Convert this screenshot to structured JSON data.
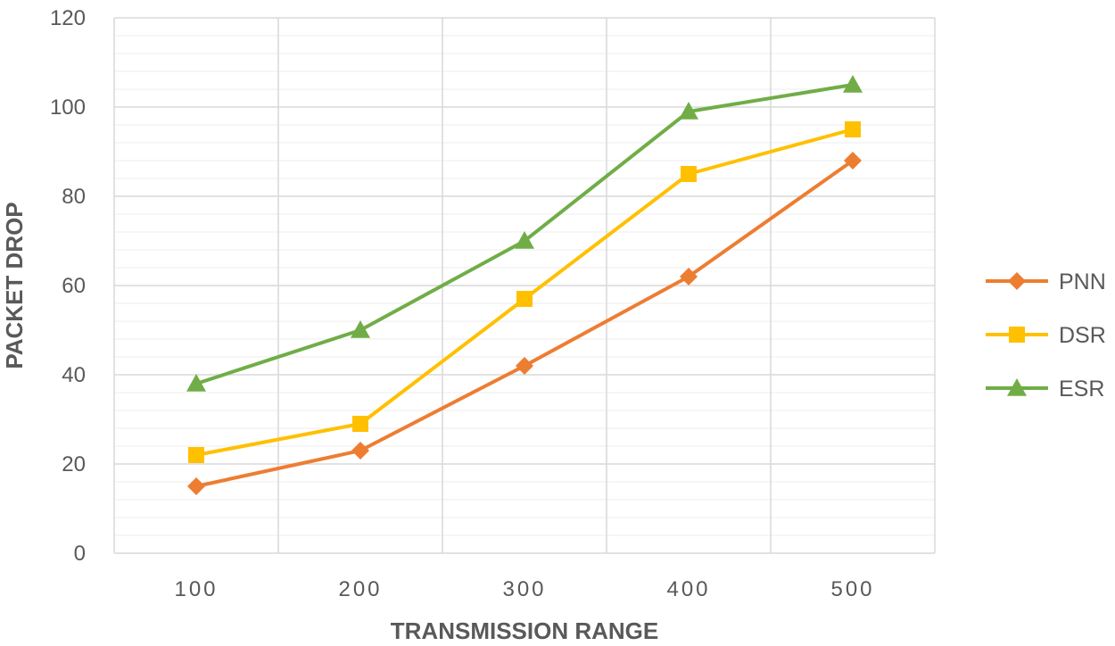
{
  "chart_data": {
    "type": "line",
    "xlabel": "TRANSMISSION RANGE",
    "ylabel": "PACKET DROP",
    "categories": [
      "100",
      "200",
      "300",
      "400",
      "500"
    ],
    "ylim": [
      0,
      120
    ],
    "yticks": [
      "0",
      "20",
      "40",
      "60",
      "80",
      "100",
      "120"
    ],
    "grid": true,
    "legend_position": "right",
    "series": [
      {
        "name": "PNN",
        "color": "#ED7D31",
        "marker": "diamond",
        "values": [
          15,
          23,
          42,
          62,
          88
        ]
      },
      {
        "name": "DSR",
        "color": "#FFC000",
        "marker": "square",
        "values": [
          22,
          29,
          57,
          85,
          95
        ]
      },
      {
        "name": "ESR",
        "color": "#70AD47",
        "marker": "triangle",
        "values": [
          38,
          50,
          70,
          99,
          105
        ]
      }
    ]
  }
}
